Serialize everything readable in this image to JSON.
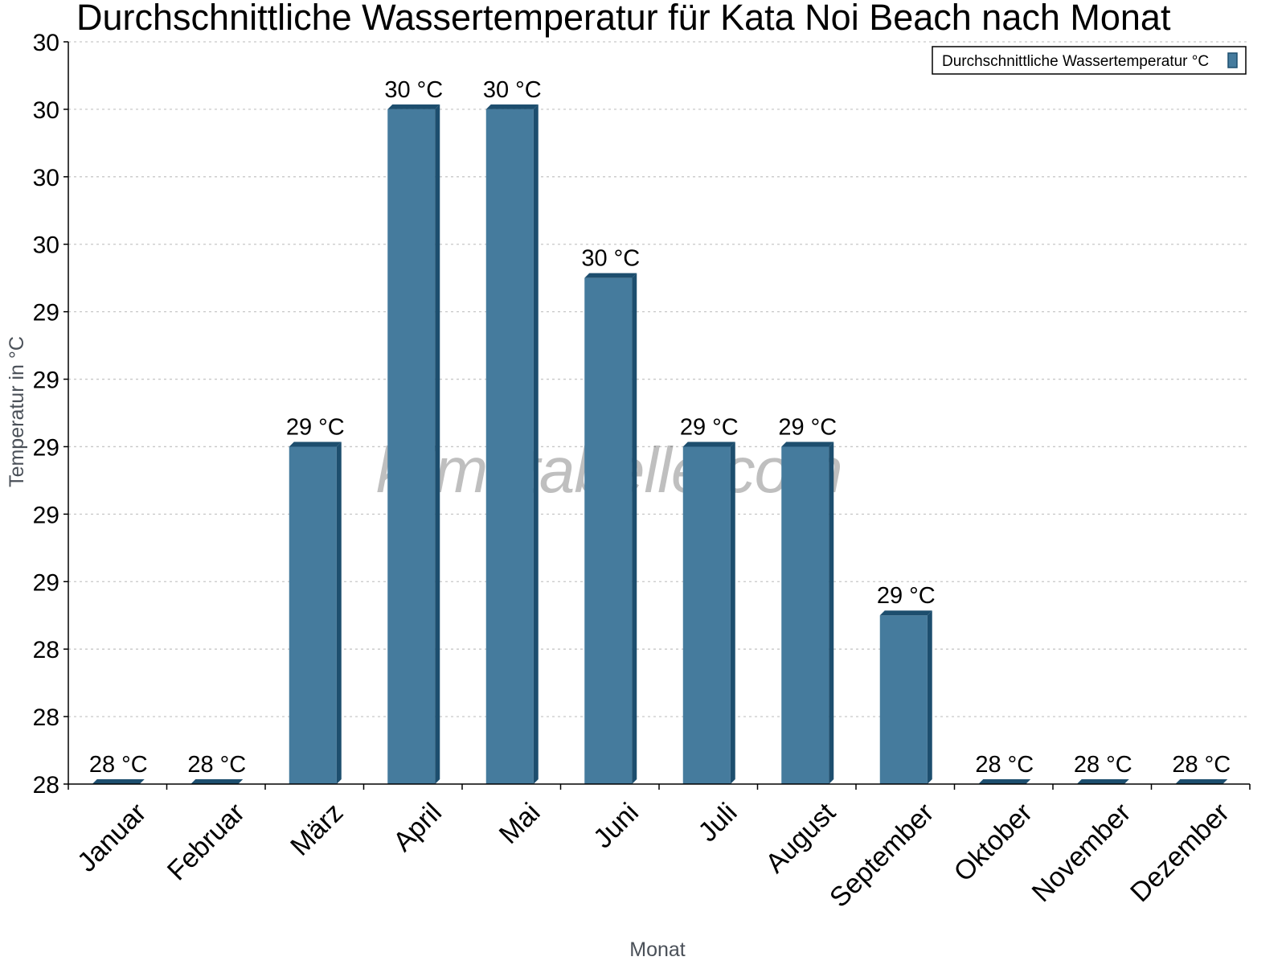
{
  "title": "Durchschnittliche Wassertemperatur für Kata Noi Beach nach Monat",
  "watermark": "klimatabelle.com",
  "legend": {
    "label": "Durchschnittliche Wassertemperatur °C",
    "color": "#457b9d"
  },
  "axes": {
    "xlabel": "Monat",
    "ylabel": "Temperatur in °C",
    "ytick_labels": [
      "28",
      "28",
      "28",
      "29",
      "29",
      "29",
      "29",
      "29",
      "30",
      "30",
      "30",
      "30"
    ]
  },
  "colors": {
    "bar_face": "#457b9d",
    "bar_edge": "#1d4e6e",
    "grid": "#c8c8c8",
    "axis": "#000000"
  },
  "chart_data": {
    "type": "bar",
    "title": "Durchschnittliche Wassertemperatur für Kata Noi Beach nach Monat",
    "xlabel": "Monat",
    "ylabel": "Temperatur in °C",
    "categories": [
      "Januar",
      "Februar",
      "März",
      "April",
      "Mai",
      "Juni",
      "Juli",
      "August",
      "September",
      "Oktober",
      "November",
      "Dezember"
    ],
    "series": [
      {
        "name": "Durchschnittliche Wassertemperatur °C",
        "values": [
          28.0,
          28.0,
          29.0,
          30.0,
          30.0,
          29.5,
          29.0,
          29.0,
          28.5,
          28.0,
          28.0,
          28.0
        ],
        "labels": [
          "28 °C",
          "28 °C",
          "29 °C",
          "30 °C",
          "30 °C",
          "30 °C",
          "29 °C",
          "29 °C",
          "29 °C",
          "28 °C",
          "28 °C",
          "28 °C"
        ]
      }
    ],
    "ylim": [
      28.0,
      30.2
    ],
    "ytick_step": 0.2,
    "grid": true,
    "legend_position": "top-right"
  }
}
